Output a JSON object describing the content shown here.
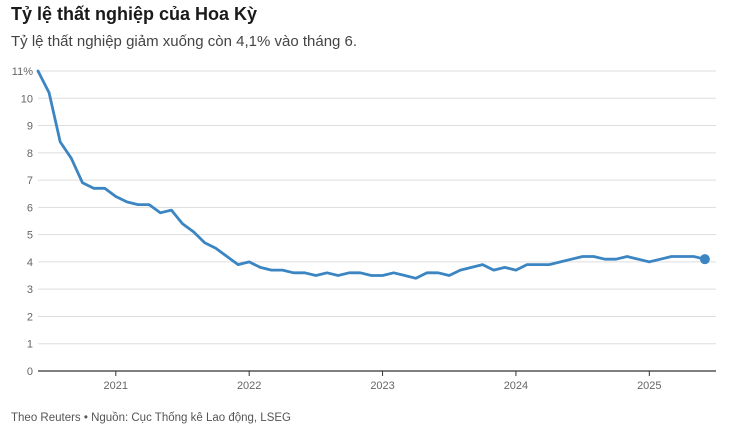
{
  "header": {
    "title": "Tỷ lệ thất nghiệp của Hoa Kỳ",
    "subtitle": "Tỷ lệ thất nghiệp giảm xuống còn 4,1% vào tháng 6."
  },
  "footer": {
    "source": "Theo Reuters • Nguồn: Cục Thống kê Lao động, LSEG"
  },
  "colors": {
    "line": "#3a85c2",
    "grid": "#dddddd",
    "axis": "#333333"
  },
  "chart_data": {
    "type": "line",
    "title": "Tỷ lệ thất nghiệp của Hoa Kỳ",
    "subtitle": "Tỷ lệ thất nghiệp giảm xuống còn 4,1% vào tháng 6.",
    "xlabel": "",
    "ylabel": "",
    "ylim": [
      0,
      11
    ],
    "xlim": [
      "2020-06",
      "2025-07"
    ],
    "grid": true,
    "legend": "none",
    "y_ticks": [
      0,
      1,
      2,
      3,
      4,
      5,
      6,
      7,
      8,
      9,
      10,
      11
    ],
    "y_tick_labels": [
      "0",
      "1",
      "2",
      "3",
      "4",
      "5",
      "6",
      "7",
      "8",
      "9",
      "10",
      "11%"
    ],
    "x_ticks": [
      "2021-01",
      "2022-01",
      "2023-01",
      "2024-01",
      "2025-01"
    ],
    "x_tick_labels": [
      "2021",
      "2022",
      "2023",
      "2024",
      "2025"
    ],
    "series": [
      {
        "x": [
          "2020-06",
          "2020-07",
          "2020-08",
          "2020-09",
          "2020-10",
          "2020-11",
          "2020-12",
          "2021-01",
          "2021-02",
          "2021-03",
          "2021-04",
          "2021-05",
          "2021-06",
          "2021-07",
          "2021-08",
          "2021-09",
          "2021-10",
          "2021-11",
          "2021-12",
          "2022-01",
          "2022-02",
          "2022-03",
          "2022-04",
          "2022-05",
          "2022-06",
          "2022-07",
          "2022-08",
          "2022-09",
          "2022-10",
          "2022-11",
          "2022-12",
          "2023-01",
          "2023-02",
          "2023-03",
          "2023-04",
          "2023-05",
          "2023-06",
          "2023-07",
          "2023-08",
          "2023-09",
          "2023-10",
          "2023-11",
          "2023-12",
          "2024-01",
          "2024-02",
          "2024-03",
          "2024-04",
          "2024-05",
          "2024-06",
          "2024-07",
          "2024-08",
          "2024-09",
          "2024-10",
          "2024-11",
          "2024-12",
          "2025-01",
          "2025-02",
          "2025-03",
          "2025-04",
          "2025-05",
          "2025-06"
        ],
        "values": [
          11.0,
          10.2,
          8.4,
          7.8,
          6.9,
          6.7,
          6.7,
          6.4,
          6.2,
          6.1,
          6.1,
          5.8,
          5.9,
          5.4,
          5.1,
          4.7,
          4.5,
          4.2,
          3.9,
          4.0,
          3.8,
          3.7,
          3.7,
          3.6,
          3.6,
          3.5,
          3.6,
          3.5,
          3.6,
          3.6,
          3.5,
          3.5,
          3.6,
          3.5,
          3.4,
          3.6,
          3.6,
          3.5,
          3.7,
          3.8,
          3.9,
          3.7,
          3.8,
          3.7,
          3.9,
          3.9,
          3.9,
          4.0,
          4.1,
          4.2,
          4.2,
          4.1,
          4.1,
          4.2,
          4.1,
          4.0,
          4.1,
          4.2,
          4.2,
          4.2,
          4.1
        ]
      }
    ],
    "last_point": {
      "x": "2025-06",
      "value": 4.1
    }
  }
}
